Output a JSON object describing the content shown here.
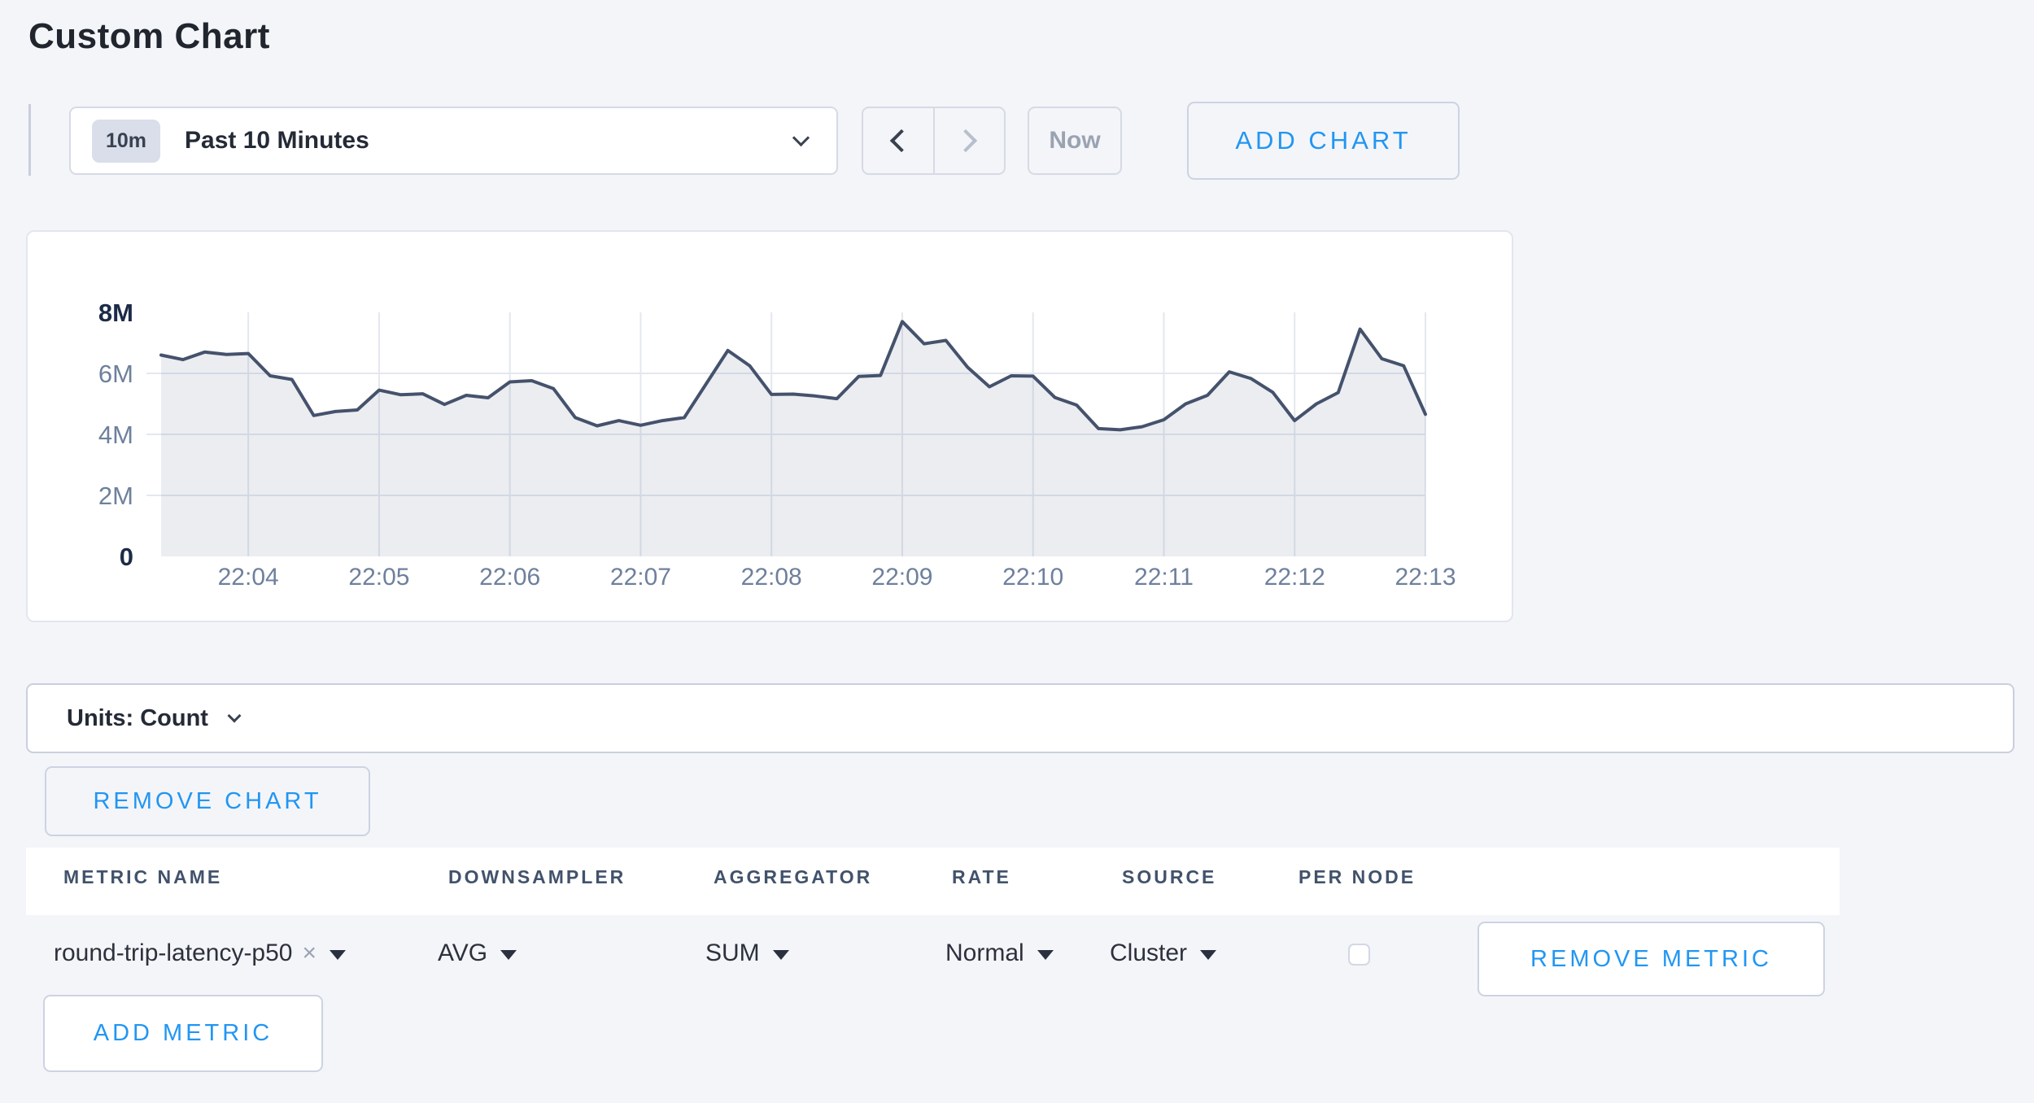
{
  "page": {
    "title": "Custom Chart"
  },
  "toolbar": {
    "time_range": {
      "badge": "10m",
      "label": "Past 10 Minutes"
    },
    "now_label": "Now",
    "add_chart_label": "ADD CHART"
  },
  "chart_data": {
    "type": "area",
    "title": "",
    "xlabel": "",
    "ylabel": "",
    "unit": "Count",
    "ylim_millions": [
      0,
      8
    ],
    "y_ticks": [
      "0",
      "2M",
      "4M",
      "6M",
      "8M"
    ],
    "y_ticks_bold": [
      "0",
      "8M"
    ],
    "x_ticks": [
      "22:04",
      "22:05",
      "22:06",
      "22:07",
      "22:08",
      "22:09",
      "22:10",
      "22:11",
      "22:12",
      "22:13"
    ],
    "first_tick_point_index": 4,
    "points_per_tick": 6,
    "point_interval_seconds": 10,
    "grid": {
      "vertical": true,
      "horizontal_at_millions": [
        2,
        4,
        6
      ]
    },
    "legend_position": "none",
    "series": [
      {
        "name": "round-trip-latency-p50",
        "values_millions": [
          6.6,
          6.45,
          6.7,
          6.62,
          6.65,
          5.92,
          5.8,
          4.62,
          4.75,
          4.8,
          5.45,
          5.3,
          5.33,
          4.98,
          5.28,
          5.2,
          5.72,
          5.76,
          5.5,
          4.55,
          4.28,
          4.45,
          4.3,
          4.45,
          4.55,
          5.65,
          6.75,
          6.25,
          5.31,
          5.32,
          5.26,
          5.17,
          5.9,
          5.93,
          7.7,
          6.97,
          7.08,
          6.2,
          5.56,
          5.92,
          5.91,
          5.21,
          4.96,
          4.19,
          4.15,
          4.25,
          4.48,
          5.0,
          5.28,
          6.05,
          5.83,
          5.38,
          4.45,
          5.0,
          5.37,
          7.45,
          6.48,
          6.25,
          4.66
        ]
      }
    ],
    "colors": {
      "line": "#45526c",
      "fill": "rgba(103,119,150,0.13)",
      "grid": "#e3e7ef",
      "tick_label": "#6e809c",
      "tick_label_strong": "#1c2b47"
    }
  },
  "units_bar": {
    "label": "Units: Count"
  },
  "chart_actions": {
    "remove_chart_label": "REMOVE CHART"
  },
  "metrics_table": {
    "columns": [
      "METRIC NAME",
      "DOWNSAMPLER",
      "AGGREGATOR",
      "RATE",
      "SOURCE",
      "PER NODE"
    ],
    "rows": [
      {
        "metric_name": "round-trip-latency-p50",
        "clear_icon": "×",
        "downsampler": "AVG",
        "aggregator": "SUM",
        "rate": "Normal",
        "source": "Cluster",
        "per_node_checked": false,
        "remove_label": "REMOVE METRIC"
      }
    ],
    "add_metric_label": "ADD METRIC"
  },
  "accent_color": "#2196f3"
}
